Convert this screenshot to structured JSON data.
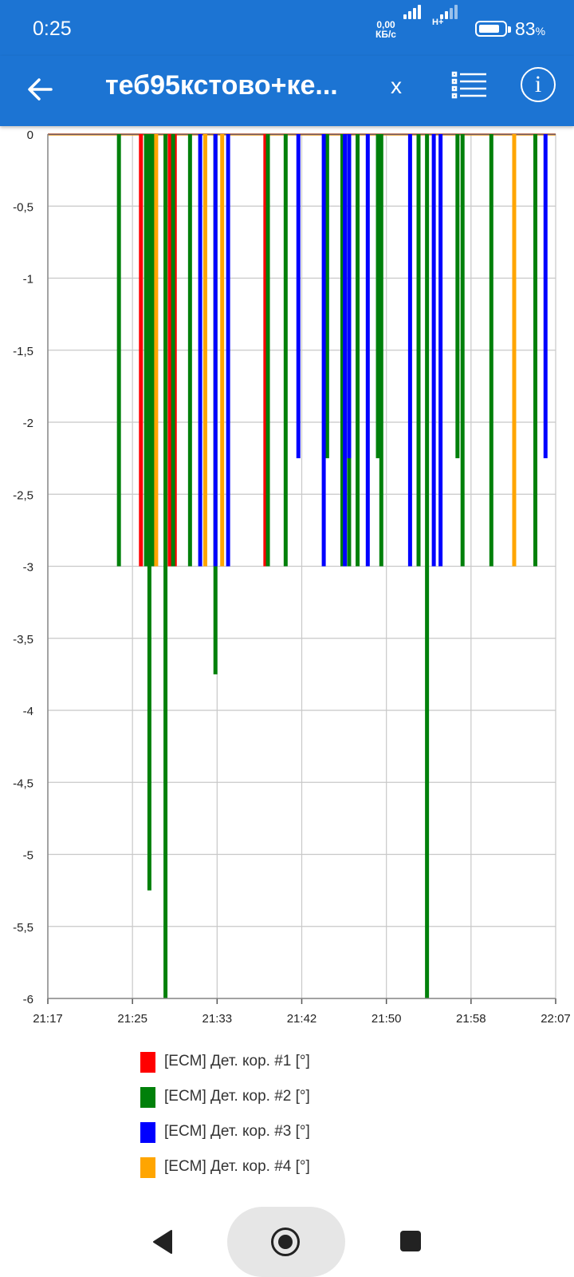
{
  "status_bar": {
    "time": "0:25",
    "net_speed_value": "0,00",
    "net_speed_unit": "КБ/с",
    "network_type": "H+",
    "battery_percent": "83",
    "battery_percent_sign": "%",
    "battery_level": 0.83
  },
  "app_bar": {
    "title": "теб95кстово+ке...",
    "clear_label": "x",
    "info_label": "i",
    "back_icon": "arrow-left-icon",
    "list_icon": "list-icon",
    "info_icon": "info-icon"
  },
  "chart_data": {
    "type": "bar",
    "title": "",
    "xlabel": "",
    "ylabel": "",
    "xlim": [
      "21:17",
      "22:07"
    ],
    "ylim": [
      -6,
      0
    ],
    "x_ticks": [
      "21:17",
      "21:25",
      "21:33",
      "21:42",
      "21:50",
      "21:58",
      "22:07"
    ],
    "y_ticks": [
      "0",
      "-0,5",
      "-1",
      "-1,5",
      "-2",
      "-2,5",
      "-3",
      "-3,5",
      "-4",
      "-4,5",
      "-5",
      "-5,5",
      "-6"
    ],
    "grid": true,
    "legend_position": "bottom",
    "series": [
      {
        "name": "[ECM] Дет. кор. #1 [°]",
        "color": "#ff0000",
        "points": [
          {
            "x": "21:26:10",
            "y": -3
          },
          {
            "x": "21:29:00",
            "y": -3
          },
          {
            "x": "21:29:30",
            "y": -3
          },
          {
            "x": "21:38:25",
            "y": -3
          }
        ]
      },
      {
        "name": "[ECM] Дет. кор. #2 [°]",
        "color": "#00800a",
        "points": [
          {
            "x": "21:24:00",
            "y": -3
          },
          {
            "x": "21:26:40",
            "y": -3
          },
          {
            "x": "21:27:00",
            "y": -5.25
          },
          {
            "x": "21:27:20",
            "y": -3
          },
          {
            "x": "21:28:35",
            "y": -6
          },
          {
            "x": "21:29:20",
            "y": -3
          },
          {
            "x": "21:31:00",
            "y": -3
          },
          {
            "x": "21:33:30",
            "y": -3.75
          },
          {
            "x": "21:38:40",
            "y": -3
          },
          {
            "x": "21:40:25",
            "y": -3
          },
          {
            "x": "21:44:30",
            "y": -2.25
          },
          {
            "x": "21:46:00",
            "y": -3
          },
          {
            "x": "21:46:40",
            "y": -3
          },
          {
            "x": "21:47:30",
            "y": -3
          },
          {
            "x": "21:49:30",
            "y": -2.25
          },
          {
            "x": "21:49:50",
            "y": -3
          },
          {
            "x": "21:53:30",
            "y": -3
          },
          {
            "x": "21:54:20",
            "y": -6
          },
          {
            "x": "21:57:20",
            "y": -2.25
          },
          {
            "x": "21:57:50",
            "y": -3
          },
          {
            "x": "22:00:40",
            "y": -3
          },
          {
            "x": "22:05:00",
            "y": -3
          }
        ]
      },
      {
        "name": "[ECM] Дет. кор. #3 [°]",
        "color": "#0000ff",
        "points": [
          {
            "x": "21:32:00",
            "y": -3
          },
          {
            "x": "21:33:30",
            "y": -3
          },
          {
            "x": "21:34:45",
            "y": -3
          },
          {
            "x": "21:41:40",
            "y": -2.25
          },
          {
            "x": "21:44:10",
            "y": -3
          },
          {
            "x": "21:46:15",
            "y": -3
          },
          {
            "x": "21:46:40",
            "y": -2.25
          },
          {
            "x": "21:48:30",
            "y": -3
          },
          {
            "x": "21:52:40",
            "y": -3
          },
          {
            "x": "21:55:00",
            "y": -3
          },
          {
            "x": "21:55:40",
            "y": -3
          },
          {
            "x": "22:06:00",
            "y": -2.25
          }
        ]
      },
      {
        "name": "[ECM] Дет. кор. #4 [°]",
        "color": "#ffa500",
        "points": [
          {
            "x": "21:27:40",
            "y": -3
          },
          {
            "x": "21:32:30",
            "y": -3
          },
          {
            "x": "21:34:10",
            "y": -3
          },
          {
            "x": "22:02:55",
            "y": -3
          }
        ]
      }
    ]
  },
  "navbar": {
    "back_icon": "triangle-back-icon",
    "home_icon": "home-circle-icon",
    "recent_icon": "square-recent-icon"
  }
}
